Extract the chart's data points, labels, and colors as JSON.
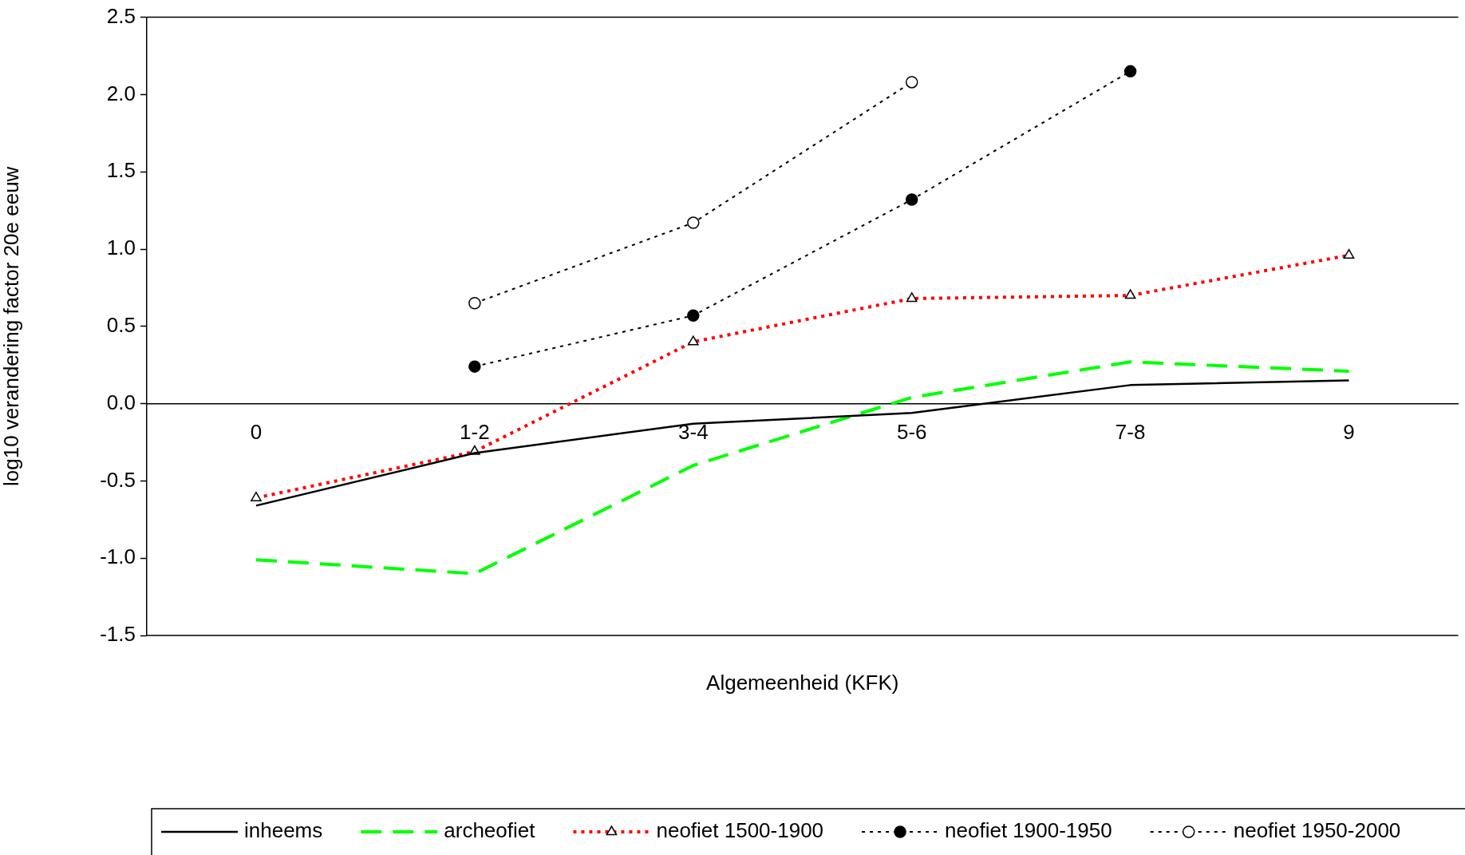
{
  "chart_data": {
    "type": "line",
    "xlabel": "Algemeenheid (KFK)",
    "ylabel": "log10 verandering factor 20e eeuw",
    "categories": [
      "0",
      "1-2",
      "3-4",
      "5-6",
      "7-8",
      "9"
    ],
    "ylim": [
      -1.5,
      2.5
    ],
    "yticks": [
      {
        "value": -1.5,
        "label": "-1.5"
      },
      {
        "value": -1,
        "label": "-1.0"
      },
      {
        "value": -0.5,
        "label": "-0.5"
      },
      {
        "value": 0,
        "label": "0.0"
      },
      {
        "value": 0.5,
        "label": "0.5"
      },
      {
        "value": 1,
        "label": "1.0"
      },
      {
        "value": 1.5,
        "label": "1.5"
      },
      {
        "value": 2,
        "label": "2.0"
      },
      {
        "value": 2.5,
        "label": "2.5"
      }
    ],
    "grid": false,
    "legend": "bottom",
    "series": [
      {
        "name": "inheems",
        "color": "#000000",
        "line_style": "solid",
        "marker": "none",
        "values": [
          -0.66,
          -0.32,
          -0.13,
          -0.06,
          0.12,
          0.15
        ]
      },
      {
        "name": "archeofiet",
        "color": "#00ff00",
        "line_style": "dashed",
        "marker": "none",
        "values": [
          -1.01,
          -1.1,
          -0.4,
          0.04,
          0.27,
          0.21
        ]
      },
      {
        "name": "neofiet 1500-1900",
        "color": "#ff0000",
        "line_style": "dotted",
        "marker": "triangle",
        "values": [
          -0.61,
          -0.31,
          0.4,
          0.68,
          0.7,
          0.96
        ]
      },
      {
        "name": "neofiet 1900-1950",
        "color": "#000000",
        "line_style": "dotted",
        "marker": "circle",
        "values": [
          null,
          0.24,
          0.57,
          1.32,
          2.15,
          null
        ]
      },
      {
        "name": "neofiet 1950-2000",
        "color": "#000000",
        "line_style": "dotted",
        "marker": "circle-open",
        "values": [
          null,
          0.65,
          1.17,
          2.08,
          null,
          null
        ]
      }
    ]
  }
}
